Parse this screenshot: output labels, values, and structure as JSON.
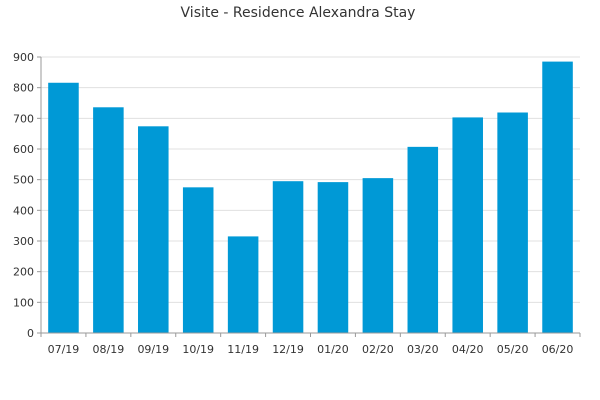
{
  "chart_data": {
    "type": "bar",
    "title": "Visite - Residence Alexandra Stay",
    "xlabel": "",
    "ylabel": "",
    "categories": [
      "07/19",
      "08/19",
      "09/19",
      "10/19",
      "11/19",
      "12/19",
      "01/20",
      "02/20",
      "03/20",
      "04/20",
      "05/20",
      "06/20"
    ],
    "values": [
      816,
      736,
      674,
      475,
      315,
      495,
      492,
      505,
      607,
      703,
      719,
      885
    ],
    "ylim": [
      0,
      900
    ],
    "yticks": [
      0,
      100,
      200,
      300,
      400,
      500,
      600,
      700,
      800,
      900
    ],
    "grid": true,
    "bar_color": "#0099d6",
    "grid_color": "#e0e0e0",
    "axis_color": "#999999"
  }
}
